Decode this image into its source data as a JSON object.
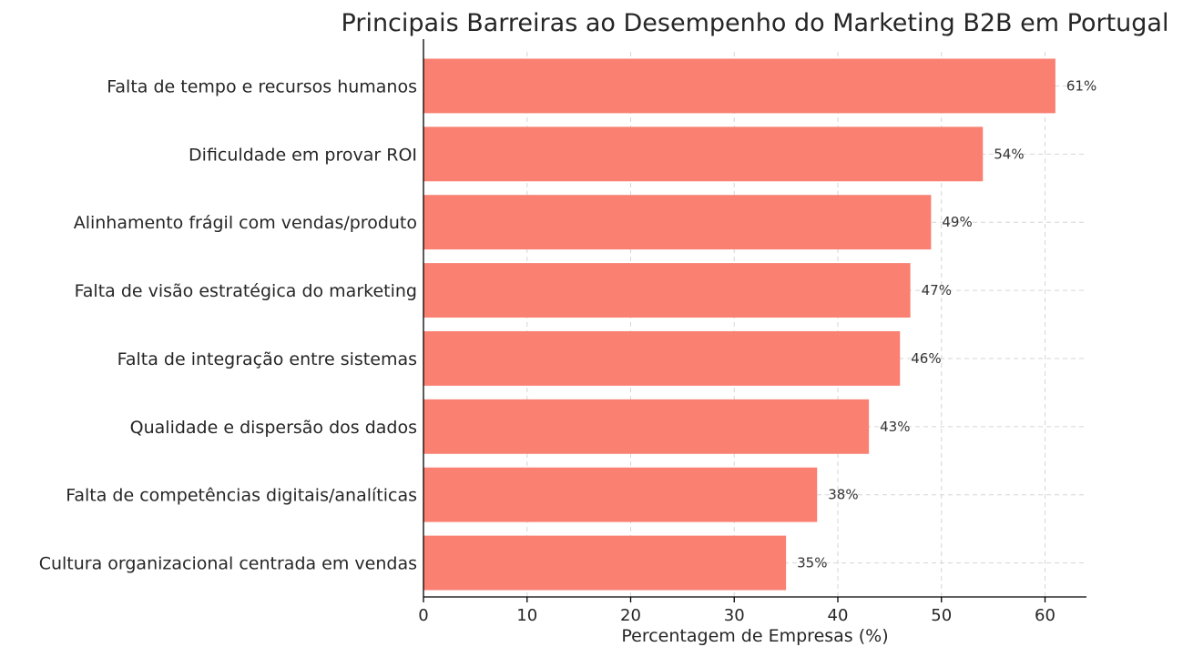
{
  "chart_data": {
    "type": "bar",
    "orientation": "horizontal",
    "title": "Principais Barreiras ao Desempenho do Marketing B2B em Portugal",
    "xlabel": "Percentagem de Empresas (%)",
    "ylabel": "",
    "xlim": [
      0,
      64
    ],
    "xticks": [
      0,
      10,
      20,
      30,
      40,
      50,
      60
    ],
    "grid": true,
    "bar_color": "#fa8072",
    "categories": [
      "Falta de tempo e recursos humanos",
      "Dificuldade em provar ROI",
      "Alinhamento frágil com vendas/produto",
      "Falta de visão estratégica do marketing",
      "Falta de integração entre sistemas",
      "Qualidade e dispersão dos dados",
      "Falta de competências digitais/analíticas",
      "Cultura organizacional centrada em vendas"
    ],
    "values": [
      61,
      54,
      49,
      47,
      46,
      43,
      38,
      35
    ],
    "data_labels": [
      "61%",
      "54%",
      "49%",
      "47%",
      "46%",
      "43%",
      "38%",
      "35%"
    ]
  }
}
